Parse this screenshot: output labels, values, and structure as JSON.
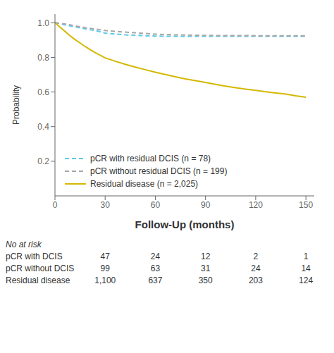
{
  "chart_data": {
    "type": "line",
    "title": "",
    "x_label": "Follow-Up (months)",
    "y_label": "Probability",
    "x": [
      0,
      3,
      6,
      9,
      12,
      15,
      18,
      21,
      24,
      27,
      30,
      36,
      42,
      48,
      54,
      60,
      66,
      72,
      78,
      84,
      90,
      96,
      102,
      108,
      114,
      120,
      126,
      132,
      138,
      144,
      150
    ],
    "series": [
      {
        "name": "pCR with residual DCIS (n = 78)",
        "color": "#5bc8e8",
        "line_style": "dashed",
        "values": [
          1.0,
          0.995,
          0.988,
          0.982,
          0.976,
          0.97,
          0.965,
          0.96,
          0.955,
          0.948,
          0.94,
          0.935,
          0.93,
          0.928,
          0.925,
          0.923,
          0.922,
          0.922,
          0.922,
          0.922,
          0.922,
          0.922,
          0.922,
          0.922,
          0.922,
          0.922,
          0.922,
          0.922,
          0.922,
          0.922,
          0.922
        ]
      },
      {
        "name": "pCR without residual DCIS (n = 199)",
        "color": "#a8a8a8",
        "line_style": "dashed",
        "values": [
          1.0,
          0.997,
          0.993,
          0.988,
          0.982,
          0.977,
          0.972,
          0.968,
          0.964,
          0.96,
          0.955,
          0.95,
          0.946,
          0.942,
          0.938,
          0.934,
          0.932,
          0.93,
          0.929,
          0.928,
          0.927,
          0.926,
          0.926,
          0.926,
          0.926,
          0.925,
          0.925,
          0.925,
          0.925,
          0.925,
          0.925
        ]
      },
      {
        "name": "Residual disease (n = 2,025)",
        "color": "#d4b800",
        "line_style": "solid",
        "values": [
          1.0,
          0.975,
          0.95,
          0.925,
          0.903,
          0.883,
          0.863,
          0.845,
          0.828,
          0.812,
          0.797,
          0.778,
          0.76,
          0.744,
          0.729,
          0.714,
          0.701,
          0.688,
          0.676,
          0.665,
          0.655,
          0.644,
          0.634,
          0.625,
          0.617,
          0.609,
          0.601,
          0.594,
          0.588,
          0.578,
          0.57
        ]
      }
    ],
    "xlim": [
      0,
      155
    ],
    "xticks": [
      0,
      30,
      60,
      90,
      120,
      150
    ],
    "ylim": [
      0.0,
      1.05
    ],
    "yticks": [
      0.2,
      0.4,
      0.6,
      0.8,
      {
        "value": 1.0,
        "label": "1.0"
      }
    ],
    "grid": false,
    "legend": "lower left",
    "risk_table": {
      "title": "No at risk",
      "x": [
        30,
        60,
        90,
        120,
        150
      ],
      "rows": [
        {
          "name": "pCR with DCIS",
          "values": [
            47,
            24,
            12,
            2,
            1
          ]
        },
        {
          "name": "pCR without DCIS",
          "values": [
            99,
            63,
            31,
            24,
            14
          ]
        },
        {
          "name": "Residual disease",
          "values": [
            1100,
            637,
            350,
            203,
            124
          ],
          "value_labels": [
            "1,100",
            "637",
            "350",
            "203",
            "124"
          ]
        }
      ]
    }
  }
}
